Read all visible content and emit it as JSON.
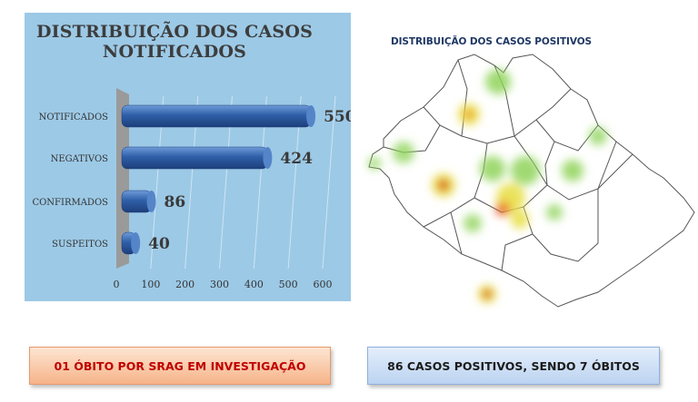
{
  "chart_data": {
    "type": "bar",
    "orientation": "horizontal",
    "title_lines": [
      "DISTRIBUIÇÃO DOS CASOS",
      "NOTIFICADOS"
    ],
    "categories": [
      "NOTIFICADOS",
      "NEGATIVOS",
      "CONFIRMADOS",
      "SUSPEITOS"
    ],
    "values": [
      550,
      424,
      86,
      40
    ],
    "data_labels": [
      "550",
      "424",
      "86",
      "40"
    ],
    "xlim": [
      0,
      600
    ],
    "xticks": [
      "0",
      "100",
      "200",
      "300",
      "400",
      "500",
      "600"
    ],
    "grid": true,
    "bar_color": "#2f5fa8",
    "background_color": "#9cc9e6"
  },
  "map": {
    "title": "DISTRIBUIÇÃO DOS CASOS POSITIVOS",
    "hotspot_colors": [
      "#8fd35a",
      "#e8e04a",
      "#f08a2a",
      "#d91c1c"
    ]
  },
  "callouts": {
    "deaths": "01 ÓBITO POR SRAG EM INVESTIGAÇÃO",
    "positive": "86 CASOS POSITIVOS, SENDO 7 ÓBITOS"
  }
}
